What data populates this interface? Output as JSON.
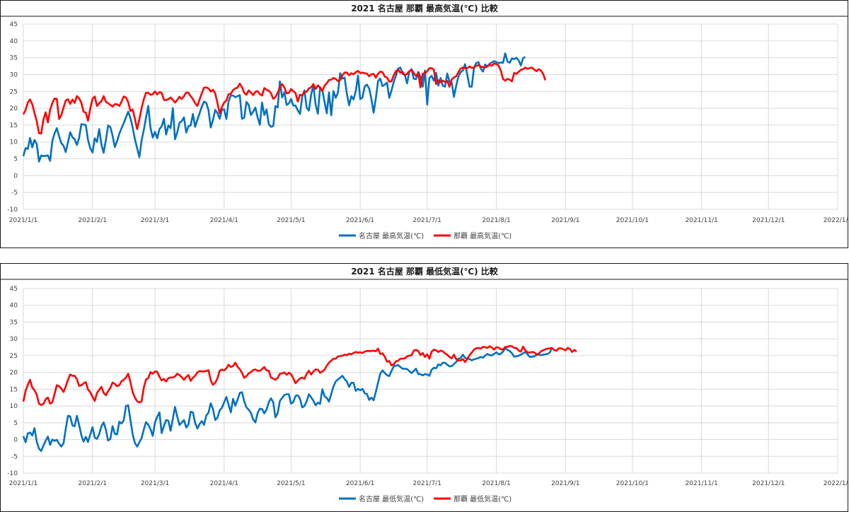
{
  "chart_data": [
    {
      "type": "line",
      "title": "2021 名古屋 那覇 最高気温(℃) 比較",
      "ylim": [
        -10,
        45
      ],
      "yticks": [
        -10,
        -5,
        0,
        5,
        10,
        15,
        20,
        25,
        30,
        35,
        40,
        45
      ],
      "xticks": [
        "2021/1/1",
        "2021/2/1",
        "2021/3/1",
        "2021/4/1",
        "2021/5/1",
        "2021/6/1",
        "2021/7/1",
        "2021/8/1",
        "2021/9/1",
        "2021/10/1",
        "2021/11/1",
        "2021/12/1",
        "2022/1/1"
      ],
      "grid": true,
      "legend_position": "bottom",
      "series": [
        {
          "name": "名古屋 最高気温(℃)",
          "color": "#0070c0",
          "values": [
            5.8,
            8.2,
            7.9,
            11.2,
            8.4,
            10.6,
            9.4,
            4.2,
            6.0,
            5.8,
            5.9,
            6.0,
            4.4,
            10.3,
            12.5,
            14.1,
            11.7,
            9.7,
            8.9,
            7.0,
            9.9,
            12.9,
            11.4,
            10.8,
            9.1,
            11.2,
            15.3,
            15.2,
            15.0,
            10.6,
            8.1,
            6.9,
            11.1,
            10.0,
            13.8,
            9.2,
            6.8,
            10.6,
            14.9,
            14.4,
            11.9,
            8.5,
            10.2,
            12.4,
            14.1,
            15.6,
            17.3,
            19.0,
            17.1,
            14.3,
            10.8,
            8.2,
            5.5,
            10.4,
            13.6,
            17.2,
            20.7,
            14.2,
            11.3,
            13.0,
            11.1,
            13.8,
            14.6,
            16.9,
            12.2,
            14.9,
            14.1,
            20.0,
            10.8,
            12.9,
            15.7,
            16.2,
            17.3,
            12.8,
            14.7,
            14.9,
            18.3,
            14.5,
            16.6,
            18.5,
            20.5,
            22.0,
            21.6,
            19.4,
            14.3,
            16.5,
            19.5,
            18.6,
            16.9,
            19.6,
            19.7,
            16.8,
            22.1,
            23.8,
            23.8,
            23.3,
            23.6,
            23.9,
            16.9,
            17.2,
            21.9,
            21.0,
            18.0,
            19.0,
            20.2,
            17.3,
            15.1,
            21.7,
            18.0,
            19.6,
            15.3,
            14.5,
            14.7,
            20.6,
            20.3,
            28.0,
            23.2,
            24.7,
            21.0,
            21.4,
            22.8,
            20.8,
            20.8,
            19.4,
            18.3,
            23.5,
            25.3,
            20.2,
            19.3,
            24.1,
            26.7,
            21.1,
            18.4,
            25.9,
            25.4,
            21.9,
            18.5,
            24.7,
            17.9,
            25.1,
            23.1,
            24.6,
            30.4,
            28.8,
            29.1,
            24.4,
            20.9,
            23.6,
            22.6,
            25.1,
            29.7,
            22.7,
            23.2,
            26.5,
            27.0,
            25.9,
            22.8,
            18.7,
            22.9,
            28.1,
            28.8,
            26.6,
            27.0,
            27.6,
            23.1,
            25.2,
            27.8,
            29.7,
            31.8,
            32.1,
            30.2,
            29.9,
            27.4,
            30.8,
            31.6,
            28.8,
            28.6,
            30.8,
            29.3,
            26.4,
            31.2,
            21.1,
            29.0,
            29.6,
            28.2,
            30.5,
            26.7,
            29.0,
            26.7,
            26.4,
            30.3,
            27.9,
            27.6,
            23.4,
            26.7,
            29.4,
            30.7,
            31.2,
            33.1,
            29.9,
            26.4,
            26.4,
            32.1,
            33.4,
            33.7,
            31.8,
            30.9,
            33.0,
            32.4,
            33.2,
            33.6,
            34.0,
            33.7,
            33.4,
            33.6,
            33.5,
            36.3,
            33.9,
            33.5,
            34.8,
            34.6,
            35.0,
            34.2,
            32.7,
            34.9,
            35.2
          ]
        },
        {
          "name": "那覇 最高気温(℃)",
          "color": "#ff0000",
          "values": [
            18.2,
            19.5,
            21.7,
            22.6,
            21.2,
            18.6,
            16.2,
            12.6,
            12.5,
            16.6,
            18.8,
            15.8,
            19.5,
            21.6,
            22.9,
            22.8,
            16.8,
            17.9,
            20.2,
            22.3,
            22.7,
            21.3,
            22.6,
            21.6,
            23.6,
            23.0,
            21.6,
            19.0,
            18.7,
            16.3,
            19.9,
            22.8,
            23.5,
            20.7,
            21.5,
            22.1,
            23.6,
            21.9,
            21.5,
            21.0,
            20.5,
            21.2,
            21.2,
            20.7,
            22.0,
            23.5,
            23.2,
            21.8,
            19.2,
            19.6,
            16.9,
            13.8,
            16.7,
            20.0,
            22.7,
            24.6,
            24.6,
            24.0,
            24.2,
            25.0,
            24.1,
            24.8,
            24.6,
            22.5,
            22.4,
            22.7,
            23.2,
            22.5,
            21.7,
            22.5,
            23.4,
            22.8,
            23.6,
            24.7,
            24.6,
            23.6,
            22.7,
            21.5,
            20.7,
            22.6,
            24.5,
            26.1,
            26.2,
            25.9,
            25.0,
            25.5,
            24.4,
            21.6,
            18.5,
            20.4,
            21.7,
            22.3,
            24.2,
            24.3,
            25.4,
            25.9,
            26.1,
            27.3,
            26.3,
            24.6,
            24.0,
            25.3,
            24.7,
            23.9,
            24.9,
            25.1,
            24.2,
            23.8,
            26.0,
            25.5,
            25.2,
            24.5,
            22.8,
            23.3,
            24.6,
            26.2,
            27.2,
            26.2,
            24.4,
            24.6,
            25.7,
            25.1,
            24.5,
            22.0,
            24.0,
            23.8,
            24.9,
            24.9,
            25.9,
            26.2,
            27.2,
            25.7,
            26.8,
            26.2,
            25.1,
            26.7,
            27.4,
            28.4,
            28.5,
            29.0,
            28.7,
            28.1,
            28.4,
            29.8,
            30.6,
            30.6,
            29.8,
            30.4,
            30.1,
            30.7,
            31.1,
            30.4,
            30.6,
            30.4,
            30.3,
            29.5,
            30.1,
            30.2,
            29.1,
            30.2,
            30.9,
            30.7,
            29.4,
            29.1,
            27.9,
            28.0,
            29.8,
            31.0,
            31.5,
            30.5,
            30.8,
            29.8,
            30.2,
            31.0,
            31.4,
            30.5,
            29.6,
            30.4,
            26.2,
            30.3,
            30.3,
            31.0,
            31.9,
            31.9,
            31.5,
            27.2,
            28.3,
            27.7,
            28.2,
            27.8,
            28.1,
            26.4,
            28.6,
            29.1,
            29.5,
            30.7,
            31.8,
            32.1,
            31.9,
            31.9,
            32.4,
            32.0,
            32.1,
            32.6,
            32.8,
            32.4,
            32.2,
            32.1,
            32.4,
            32.9,
            32.6,
            33.3,
            33.1,
            32.7,
            31.2,
            28.7,
            28.2,
            28.7,
            28.5,
            28.0,
            30.5,
            30.2,
            30.8,
            31.4,
            31.6,
            32.1,
            31.7,
            31.9,
            32.1,
            31.5,
            31.0,
            31.6,
            31.2,
            30.2,
            28.3
          ]
        }
      ]
    },
    {
      "type": "line",
      "title": "2021 名古屋 那覇 最低気温(℃) 比較",
      "ylim": [
        -10,
        45
      ],
      "yticks": [
        -10,
        -5,
        0,
        5,
        10,
        15,
        20,
        25,
        30,
        35,
        40,
        45
      ],
      "xticks": [
        "2021/1/1",
        "2021/2/1",
        "2021/3/1",
        "2021/4/1",
        "2021/5/1",
        "2021/6/1",
        "2021/7/1",
        "2021/8/1",
        "2021/9/1",
        "2021/10/1",
        "2021/11/1",
        "2021/12/1",
        "2022/1/1"
      ],
      "grid": true,
      "legend_position": "bottom",
      "series": [
        {
          "name": "名古屋 最低気温(℃)",
          "color": "#0070c0",
          "values": [
            1.0,
            -0.8,
            1.8,
            2.1,
            1.2,
            3.4,
            -0.6,
            -2.7,
            -3.4,
            -1.8,
            -0.4,
            0.9,
            -1.6,
            0.0,
            -0.4,
            -0.1,
            -1.2,
            -2.1,
            -1.1,
            3.1,
            7.1,
            6.9,
            4.2,
            4.0,
            7.1,
            4.4,
            1.3,
            -0.6,
            0.8,
            -0.7,
            1.5,
            3.7,
            0.6,
            0.2,
            1.6,
            4.0,
            5.1,
            2.9,
            -0.3,
            0.2,
            4.0,
            1.7,
            1.5,
            5.3,
            4.8,
            5.7,
            10.0,
            10.2,
            5.8,
            1.6,
            -1.0,
            -2.1,
            -0.8,
            0.4,
            3.0,
            5.2,
            4.4,
            3.1,
            1.1,
            5.1,
            6.8,
            8.1,
            1.9,
            4.1,
            5.8,
            5.6,
            2.6,
            6.2,
            9.7,
            6.8,
            4.3,
            5.1,
            5.8,
            3.6,
            4.5,
            8.3,
            8.1,
            5.0,
            3.3,
            4.6,
            5.5,
            4.4,
            7.2,
            8.0,
            10.8,
            9.1,
            5.8,
            6.5,
            8.7,
            9.5,
            11.1,
            12.7,
            10.4,
            8.1,
            12.1,
            10.1,
            11.8,
            13.9,
            14.1,
            11.4,
            9.6,
            8.9,
            8.0,
            6.0,
            5.1,
            7.9,
            9.2,
            9.1,
            7.8,
            8.9,
            11.1,
            12.3,
            11.1,
            6.6,
            7.9,
            11.5,
            12.4,
            13.3,
            13.5,
            13.5,
            10.7,
            11.2,
            13.0,
            13.2,
            12.2,
            9.6,
            10.0,
            11.4,
            13.5,
            12.6,
            11.6,
            10.2,
            11.0,
            10.6,
            15.0,
            12.9,
            12.4,
            11.3,
            13.6,
            15.8,
            17.3,
            17.9,
            18.4,
            19.0,
            18.0,
            17.3,
            15.7,
            16.9,
            16.9,
            14.5,
            15.1,
            14.7,
            15.1,
            13.8,
            13.6,
            11.8,
            12.5,
            11.7,
            14.2,
            17.0,
            19.6,
            20.6,
            19.8,
            19.2,
            18.9,
            20.4,
            21.8,
            22.0,
            22.2,
            21.6,
            21.1,
            21.1,
            21.0,
            20.4,
            19.8,
            20.4,
            21.1,
            19.5,
            19.5,
            19.1,
            19.5,
            19.4,
            19.0,
            20.8,
            21.4,
            21.2,
            22.4,
            22.1,
            22.9,
            22.9,
            22.3,
            21.8,
            21.9,
            22.5,
            23.1,
            24.1,
            24.3,
            25.3,
            24.3,
            24.1,
            24.0,
            23.6,
            23.9,
            24.1,
            24.3,
            24.6,
            24.4,
            25.0,
            25.5,
            25.1,
            25.1,
            25.5,
            26.0,
            25.4,
            25.5,
            26.2,
            27.2,
            26.7,
            26.4,
            25.7,
            24.7,
            24.8,
            25.0,
            25.3,
            25.7,
            26.1,
            25.4,
            24.6,
            24.7,
            24.8,
            25.2,
            25.4,
            25.1,
            25.3,
            25.4,
            25.5,
            26.0,
            27.4
          ]
        },
        {
          "name": "那覇 最低気温(℃)",
          "color": "#ff0000",
          "values": [
            11.3,
            14.5,
            16.3,
            17.8,
            15.5,
            14.7,
            13.4,
            10.7,
            10.3,
            10.6,
            12.0,
            12.5,
            10.7,
            11.1,
            13.6,
            16.2,
            15.9,
            15.2,
            14.2,
            15.8,
            17.8,
            19.4,
            19.0,
            19.0,
            18.0,
            16.0,
            16.2,
            16.7,
            17.1,
            14.9,
            14.1,
            12.7,
            11.5,
            13.9,
            14.8,
            15.7,
            13.9,
            13.2,
            14.4,
            15.4,
            17.0,
            16.6,
            15.9,
            16.2,
            17.4,
            17.8,
            18.5,
            19.6,
            17.1,
            14.1,
            12.5,
            11.4,
            11.1,
            11.3,
            15.5,
            17.9,
            18.3,
            20.1,
            19.6,
            20.3,
            20.2,
            18.7,
            17.6,
            18.1,
            17.3,
            18.3,
            18.5,
            18.5,
            18.8,
            19.6,
            19.2,
            18.6,
            17.8,
            18.7,
            19.2,
            17.5,
            18.4,
            19.0,
            20.0,
            20.4,
            20.3,
            20.3,
            20.4,
            20.7,
            17.6,
            16.3,
            16.9,
            18.2,
            20.5,
            20.9,
            20.6,
            21.2,
            22.3,
            21.6,
            21.9,
            22.9,
            21.7,
            21.0,
            19.9,
            18.4,
            18.9,
            19.7,
            20.1,
            20.7,
            20.9,
            20.5,
            20.5,
            21.0,
            21.6,
            20.6,
            20.5,
            18.5,
            18.2,
            17.8,
            18.4,
            19.6,
            19.7,
            20.0,
            19.3,
            19.9,
            19.5,
            18.2,
            16.8,
            17.5,
            18.2,
            18.5,
            18.1,
            19.6,
            20.5,
            19.4,
            20.3,
            20.9,
            20.8,
            19.9,
            20.3,
            20.8,
            22.0,
            22.9,
            23.5,
            24.1,
            24.1,
            24.7,
            24.9,
            25.0,
            25.3,
            25.1,
            25.6,
            25.4,
            25.8,
            26.1,
            25.9,
            26.0,
            25.8,
            26.2,
            26.4,
            26.4,
            26.4,
            26.5,
            26.3,
            27.1,
            25.5,
            25.7,
            24.7,
            23.2,
            23.4,
            22.1,
            22.4,
            23.3,
            23.5,
            24.1,
            24.1,
            24.2,
            24.8,
            25.0,
            25.1,
            26.5,
            26.7,
            26.4,
            25.2,
            25.8,
            24.6,
            25.4,
            24.1,
            26.2,
            26.8,
            26.6,
            26.1,
            26.5,
            26.3,
            25.7,
            25.3,
            24.6,
            24.2,
            25.3,
            24.0,
            23.5,
            23.6,
            24.0,
            23.1,
            24.1,
            25.1,
            25.9,
            26.8,
            27.2,
            27.3,
            27.1,
            27.6,
            27.5,
            27.3,
            27.8,
            27.4,
            26.8,
            27.5,
            27.4,
            26.9,
            26.8,
            27.6,
            27.6,
            27.9,
            27.8,
            27.3,
            27.3,
            26.5,
            26.2,
            27.7,
            26.6,
            26.0,
            25.9,
            26.1,
            26.0,
            25.4,
            25.5,
            26.3,
            26.6,
            26.9,
            27.1,
            27.2,
            27.3,
            26.6,
            26.5,
            27.2,
            27.2,
            26.9,
            26.6,
            27.3,
            27.0,
            26.1,
            26.7,
            26.2
          ]
        }
      ]
    }
  ]
}
